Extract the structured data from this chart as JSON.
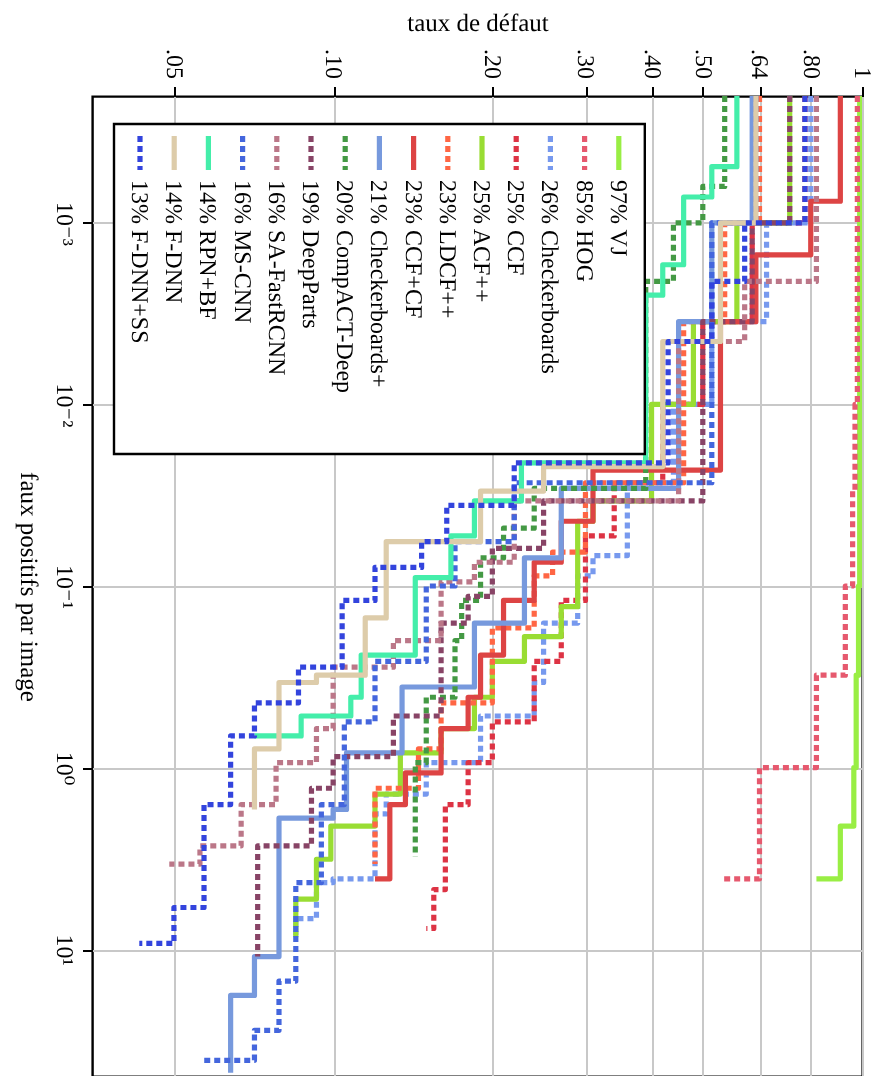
{
  "chart_data": {
    "type": "step",
    "xlabel": "taux de défaut",
    "ylabel": "faux positifs par image",
    "log": "xy",
    "grid": true,
    "legend": "top left",
    "xlim": [
      0.035,
      1
    ],
    "ylim": [
      50,
      0.0002
    ],
    "xticks": [
      {
        "value": 0.05,
        "label": ".05"
      },
      {
        "value": 0.1,
        "label": ".10"
      },
      {
        "value": 0.2,
        "label": ".20"
      },
      {
        "value": 0.3,
        "label": ".30"
      },
      {
        "value": 0.4,
        "label": ".40"
      },
      {
        "value": 0.5,
        "label": ".50"
      },
      {
        "value": 0.64,
        "label": ".64"
      },
      {
        "value": 0.8,
        "label": ".80"
      },
      1
    ],
    "yticks": [
      {
        "value": 0.001,
        "label": "10⁻³"
      },
      {
        "value": 0.01,
        "label": "10⁻²"
      },
      {
        "value": 0.1,
        "label": "10⁻¹"
      },
      {
        "value": 1,
        "label": "10⁰"
      },
      {
        "value": 10,
        "label": "10¹"
      }
    ],
    "series": [
      {
        "name": "97% VJ",
        "color": "#99ee44",
        "line_style": "solid",
        "values": [
          0.0002,
          0.045,
          0.1,
          0.31,
          1,
          2.1,
          4.1
        ],
        "x": [
          0.99,
          0.99,
          0.985,
          0.975,
          0.965,
          0.91,
          0.82
        ]
      },
      {
        "name": "85% HOG",
        "color": "#e6596e",
        "line_style": "dotted",
        "values": [
          0.0002,
          0.01,
          0.03,
          0.1,
          0.31,
          1,
          4.1
        ],
        "x": [
          0.98,
          0.97,
          0.96,
          0.93,
          0.82,
          0.64,
          0.54
        ]
      },
      {
        "name": "26% Checkerboards",
        "color": "#7799ee",
        "line_style": "dotted",
        "values": [
          0.0002,
          0.001,
          0.0035,
          0.01,
          0.027,
          0.068,
          0.088,
          0.16,
          0.34,
          0.52,
          0.94,
          1.4,
          1.8,
          4.1,
          4.3,
          6.8,
          8.4
        ],
        "x": [
          0.8,
          0.66,
          0.52,
          0.44,
          0.36,
          0.31,
          0.29,
          0.25,
          0.24,
          0.19,
          0.15,
          0.126,
          0.12,
          0.1,
          0.093,
          0.085,
          0.085
        ]
      },
      {
        "name": "25% CCF",
        "color": "#dd3344",
        "line_style": "dotted",
        "values": [
          0.0002,
          0.001,
          0.0035,
          0.01,
          0.027,
          0.053,
          0.12,
          0.26,
          0.56,
          0.94,
          1.6,
          4.7,
          7.7
        ],
        "x": [
          0.78,
          0.62,
          0.5,
          0.42,
          0.34,
          0.3,
          0.27,
          0.24,
          0.2,
          0.18,
          0.163,
          0.155,
          0.15
        ]
      },
      {
        "name": "25% ACF++",
        "color": "#99dd33",
        "line_style": "solid",
        "values": [
          0.0002,
          0.00059,
          0.001,
          0.0035,
          0.01,
          0.034,
          0.044,
          0.13,
          0.19,
          0.26,
          0.41,
          0.61,
          0.83,
          1.4,
          2.1,
          3.2,
          5.3,
          8.6
        ],
        "x": [
          0.73,
          0.73,
          0.58,
          0.48,
          0.4,
          0.31,
          0.29,
          0.27,
          0.23,
          0.2,
          0.185,
          0.16,
          0.134,
          0.12,
          0.099,
          0.093,
          0.085,
          0.085
        ]
      },
      {
        "name": "23% LDCF++",
        "color": "#ff6644",
        "line_style": "dotted",
        "values": [
          0.0002,
          0.001,
          0.0035,
          0.027,
          0.065,
          0.088,
          0.17,
          0.44,
          0.79,
          1.3,
          3.4
        ],
        "x": [
          0.64,
          0.55,
          0.46,
          0.3,
          0.26,
          0.24,
          0.2,
          0.16,
          0.145,
          0.12,
          0.12
        ]
      },
      {
        "name": "23% CCF+CF",
        "color": "#dd4444",
        "line_style": "solid",
        "values": [
          0.0002,
          0.00027,
          0.00076,
          0.0015,
          0.0035,
          0.023,
          0.044,
          0.074,
          0.12,
          0.24,
          0.41,
          0.61,
          1.07,
          1.6,
          4.1
        ],
        "x": [
          0.91,
          0.91,
          0.8,
          0.63,
          0.54,
          0.31,
          0.27,
          0.24,
          0.21,
          0.19,
          0.18,
          0.16,
          0.137,
          0.128,
          0.12
        ]
      },
      {
        "name": "21% Checkerboards+",
        "color": "#7799dd",
        "line_style": "solid",
        "values": [
          0.0002,
          0.001,
          0.0035,
          0.029,
          0.07,
          0.16,
          0.36,
          0.83,
          1.7,
          1.9,
          11,
          18,
          48
        ],
        "x": [
          0.62,
          0.52,
          0.45,
          0.27,
          0.23,
          0.185,
          0.135,
          0.106,
          0.1,
          0.079,
          0.071,
          0.064,
          0.064
        ]
      },
      {
        "name": "20% CompACT-Deep",
        "color": "#449944",
        "line_style": "dotted",
        "values": [
          0.0002,
          0.00063,
          0.001,
          0.0021,
          0.029,
          0.048,
          0.07,
          0.12,
          0.2,
          0.41,
          0.94,
          3.1
        ],
        "x": [
          0.55,
          0.5,
          0.44,
          0.39,
          0.24,
          0.21,
          0.19,
          0.175,
          0.17,
          0.15,
          0.143,
          0.143
        ]
      },
      {
        "name": "19% DeepParts",
        "color": "#884466",
        "line_style": "dotted",
        "values": [
          0.0002,
          0.001,
          0.0035,
          0.034,
          0.062,
          0.114,
          0.16,
          0.52,
          0.87,
          1.3,
          2.7,
          11
        ],
        "x": [
          0.73,
          0.62,
          0.5,
          0.25,
          0.2,
          0.18,
          0.16,
          0.13,
          0.1,
          0.091,
          0.072,
          0.072
        ]
      },
      {
        "name": "16% SA-FastRCNN",
        "color": "#bb7788",
        "line_style": "dotted",
        "values": [
          0.0002,
          0.0014,
          0.0021,
          0.0045,
          0.034,
          0.074,
          0.095,
          0.2,
          0.28,
          0.61,
          0.94,
          1.6,
          2.7,
          3.4
        ],
        "x": [
          0.82,
          0.82,
          0.6,
          0.45,
          0.22,
          0.185,
          0.16,
          0.13,
          0.1,
          0.093,
          0.078,
          0.067,
          0.056,
          0.049
        ]
      },
      {
        "name": "16% MS-CNN",
        "color": "#4466dd",
        "line_style": "dotted",
        "values": [
          0.0002,
          0.001,
          0.027,
          0.057,
          0.1,
          0.26,
          0.56,
          1.6,
          4.3,
          15,
          28,
          41
        ],
        "x": [
          0.63,
          0.52,
          0.22,
          0.17,
          0.15,
          0.12,
          0.105,
          0.095,
          0.085,
          0.079,
          0.071,
          0.057
        ]
      },
      {
        "name": "14% RPN+BF",
        "color": "#44eeaa",
        "line_style": "solid",
        "values": [
          0.0002,
          0.00049,
          0.00072,
          0.0017,
          0.0025,
          0.021,
          0.034,
          0.053,
          0.09,
          0.24,
          0.41,
          0.52,
          0.67
        ],
        "x": [
          0.58,
          0.52,
          0.46,
          0.42,
          0.39,
          0.227,
          0.185,
          0.167,
          0.143,
          0.113,
          0.108,
          0.087,
          0.071
        ]
      },
      {
        "name": "14% F-DNN",
        "color": "#ddccaa",
        "line_style": "solid",
        "values": [
          0.0002,
          0.001,
          0.0045,
          0.022,
          0.03,
          0.057,
          0.15,
          0.31,
          0.34,
          0.79,
          1.7
        ],
        "x": [
          0.63,
          0.54,
          0.42,
          0.25,
          0.19,
          0.126,
          0.115,
          0.093,
          0.079,
          0.071,
          0.071
        ]
      },
      {
        "name": "13% F-DNN+SS",
        "color": "#3344dd",
        "line_style": "dotted",
        "values": [
          0.0002,
          0.001,
          0.0021,
          0.0045,
          0.021,
          0.036,
          0.057,
          0.079,
          0.12,
          0.28,
          0.44,
          0.67,
          1.6,
          5.9,
          9.3
        ],
        "x": [
          0.78,
          0.6,
          0.52,
          0.43,
          0.22,
          0.164,
          0.147,
          0.12,
          0.104,
          0.086,
          0.071,
          0.064,
          0.057,
          0.05,
          0.043
        ]
      }
    ]
  }
}
